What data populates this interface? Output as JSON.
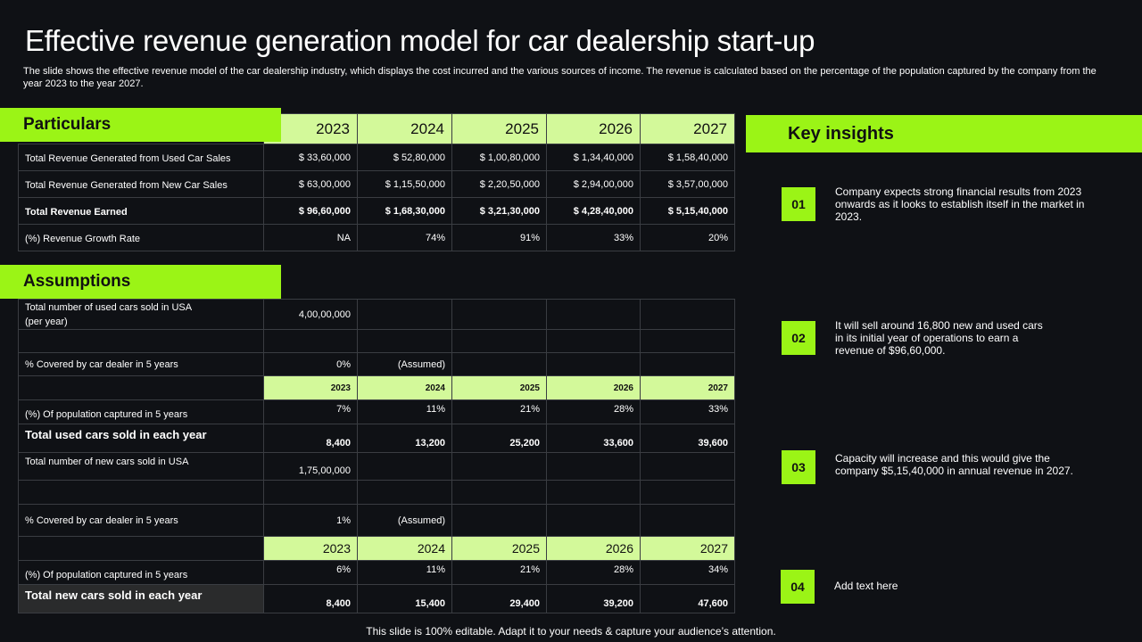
{
  "title": "Effective revenue generation model for car dealership start-up",
  "subtitle": "The slide shows the effective revenue model of the car dealership industry, which displays the cost incurred and the various sources of income. The revenue is calculated based on the percentage of the population captured by the company from the year 2023 to the year 2027.",
  "particulars": {
    "heading": "Particulars",
    "years": [
      "2023",
      "2024",
      "2025",
      "2026",
      "2027"
    ],
    "rows": [
      {
        "label": "Total Revenue Generated  from Used Car Sales",
        "values": [
          "$ 33,60,000",
          "$ 52,80,000",
          "$ 1,00,80,000",
          "$ 1,34,40,000",
          "$ 1,58,40,000"
        ]
      },
      {
        "label": "Total Revenue Generated  from New Car Sales",
        "values": [
          "$ 63,00,000",
          "$ 1,15,50,000",
          "$ 2,20,50,000",
          "$ 2,94,00,000",
          "$ 3,57,00,000"
        ]
      },
      {
        "label": "Total Revenue Earned",
        "values": [
          "$ 96,60,000",
          "$ 1,68,30,000",
          "$ 3,21,30,000",
          "$ 4,28,40,000",
          "$ 5,15,40,000"
        ]
      },
      {
        "label": "(%) Revenue Growth Rate",
        "values": [
          "NA",
          "74%",
          "91%",
          "33%",
          "20%"
        ]
      }
    ]
  },
  "assumptions": {
    "heading": "Assumptions",
    "used_total_label": "Total number of used cars sold in USA\n(per year)",
    "used_total_value": "4,00,00,000",
    "used_cover_label": "% Covered by car dealer in 5 years",
    "used_cover_value": "0%",
    "used_cover_note": "(Assumed)",
    "used_years": [
      "2023",
      "2024",
      "2025",
      "2026",
      "2027"
    ],
    "used_pop_label": "(%) Of population  captured  in 5 years",
    "used_pop_values": [
      "7%",
      "11%",
      "21%",
      "28%",
      "33%"
    ],
    "used_sold_label": "Total used cars sold in each year",
    "used_sold_values": [
      "8,400",
      "13,200",
      "25,200",
      "33,600",
      "39,600"
    ],
    "new_total_label": "Total number of new cars sold  in USA",
    "new_total_value": "1,75,00,000",
    "new_cover_label": "% Covered by car dealer  in 5 years",
    "new_cover_value": "1%",
    "new_cover_note": "(Assumed)",
    "new_years": [
      "2023",
      "2024",
      "2025",
      "2026",
      "2027"
    ],
    "new_pop_label": "(%) Of population  captured  in 5 years",
    "new_pop_values": [
      "6%",
      "11%",
      "21%",
      "28%",
      "34%"
    ],
    "new_sold_label": "Total new cars sold in each year",
    "new_sold_values": [
      "8,400",
      "15,400",
      "29,400",
      "39,200",
      "47,600"
    ]
  },
  "insights": {
    "heading": "Key insights",
    "items": [
      {
        "num": "01",
        "text": "Company expects strong financial results from 2023 onwards as it looks to establish itself in the market in 2023."
      },
      {
        "num": "02",
        "text": "It will sell around 16,800 new and used cars in its initial year of operations to earn a revenue of $96,60,000."
      },
      {
        "num": "03",
        "text": "Capacity will increase and this would give the company $5,15,40,000 in annual revenue in 2027."
      },
      {
        "num": "04",
        "text": "Add text here"
      }
    ]
  },
  "footer": "This slide is 100% editable. Adapt it to your needs & capture your audience’s attention.",
  "colors": {
    "accent": "#9bf416",
    "accent_light": "#d3f99a",
    "background": "#0f1115"
  }
}
